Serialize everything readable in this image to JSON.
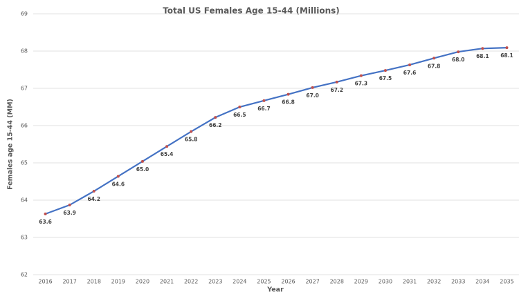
{
  "chart_data": {
    "type": "line",
    "title": "Total US Females Age 15-44 (Millions)",
    "x_label": "Year",
    "y_label": "Females age 15-44 (MM)",
    "categories": [
      "2016",
      "2017",
      "2018",
      "2019",
      "2020",
      "2021",
      "2022",
      "2023",
      "2024",
      "2025",
      "2026",
      "2027",
      "2028",
      "2029",
      "2030",
      "2031",
      "2032",
      "2033",
      "2034",
      "2035"
    ],
    "series": [
      {
        "name": "Females age 15-44 (MM)",
        "color": "#4472c4",
        "marker_color": "#c0504d",
        "values": [
          63.63,
          63.87,
          64.24,
          64.64,
          65.04,
          65.44,
          65.84,
          66.22,
          66.5,
          66.67,
          66.84,
          67.02,
          67.17,
          67.34,
          67.48,
          67.63,
          67.81,
          67.98,
          68.07,
          68.09
        ],
        "value_labels": [
          "63.6",
          "63.9",
          "64.2",
          "64.6",
          "65.0",
          "65.4",
          "65.8",
          "66.2",
          "66.5",
          "66.7",
          "66.8",
          "67.0",
          "67.2",
          "67.3",
          "67.5",
          "67.6",
          "67.8",
          "68.0",
          "68.1",
          "68.1"
        ]
      }
    ],
    "ylim": [
      62,
      69
    ],
    "yticks": [
      62,
      63,
      64,
      65,
      66,
      67,
      68,
      69
    ],
    "grid": true
  }
}
